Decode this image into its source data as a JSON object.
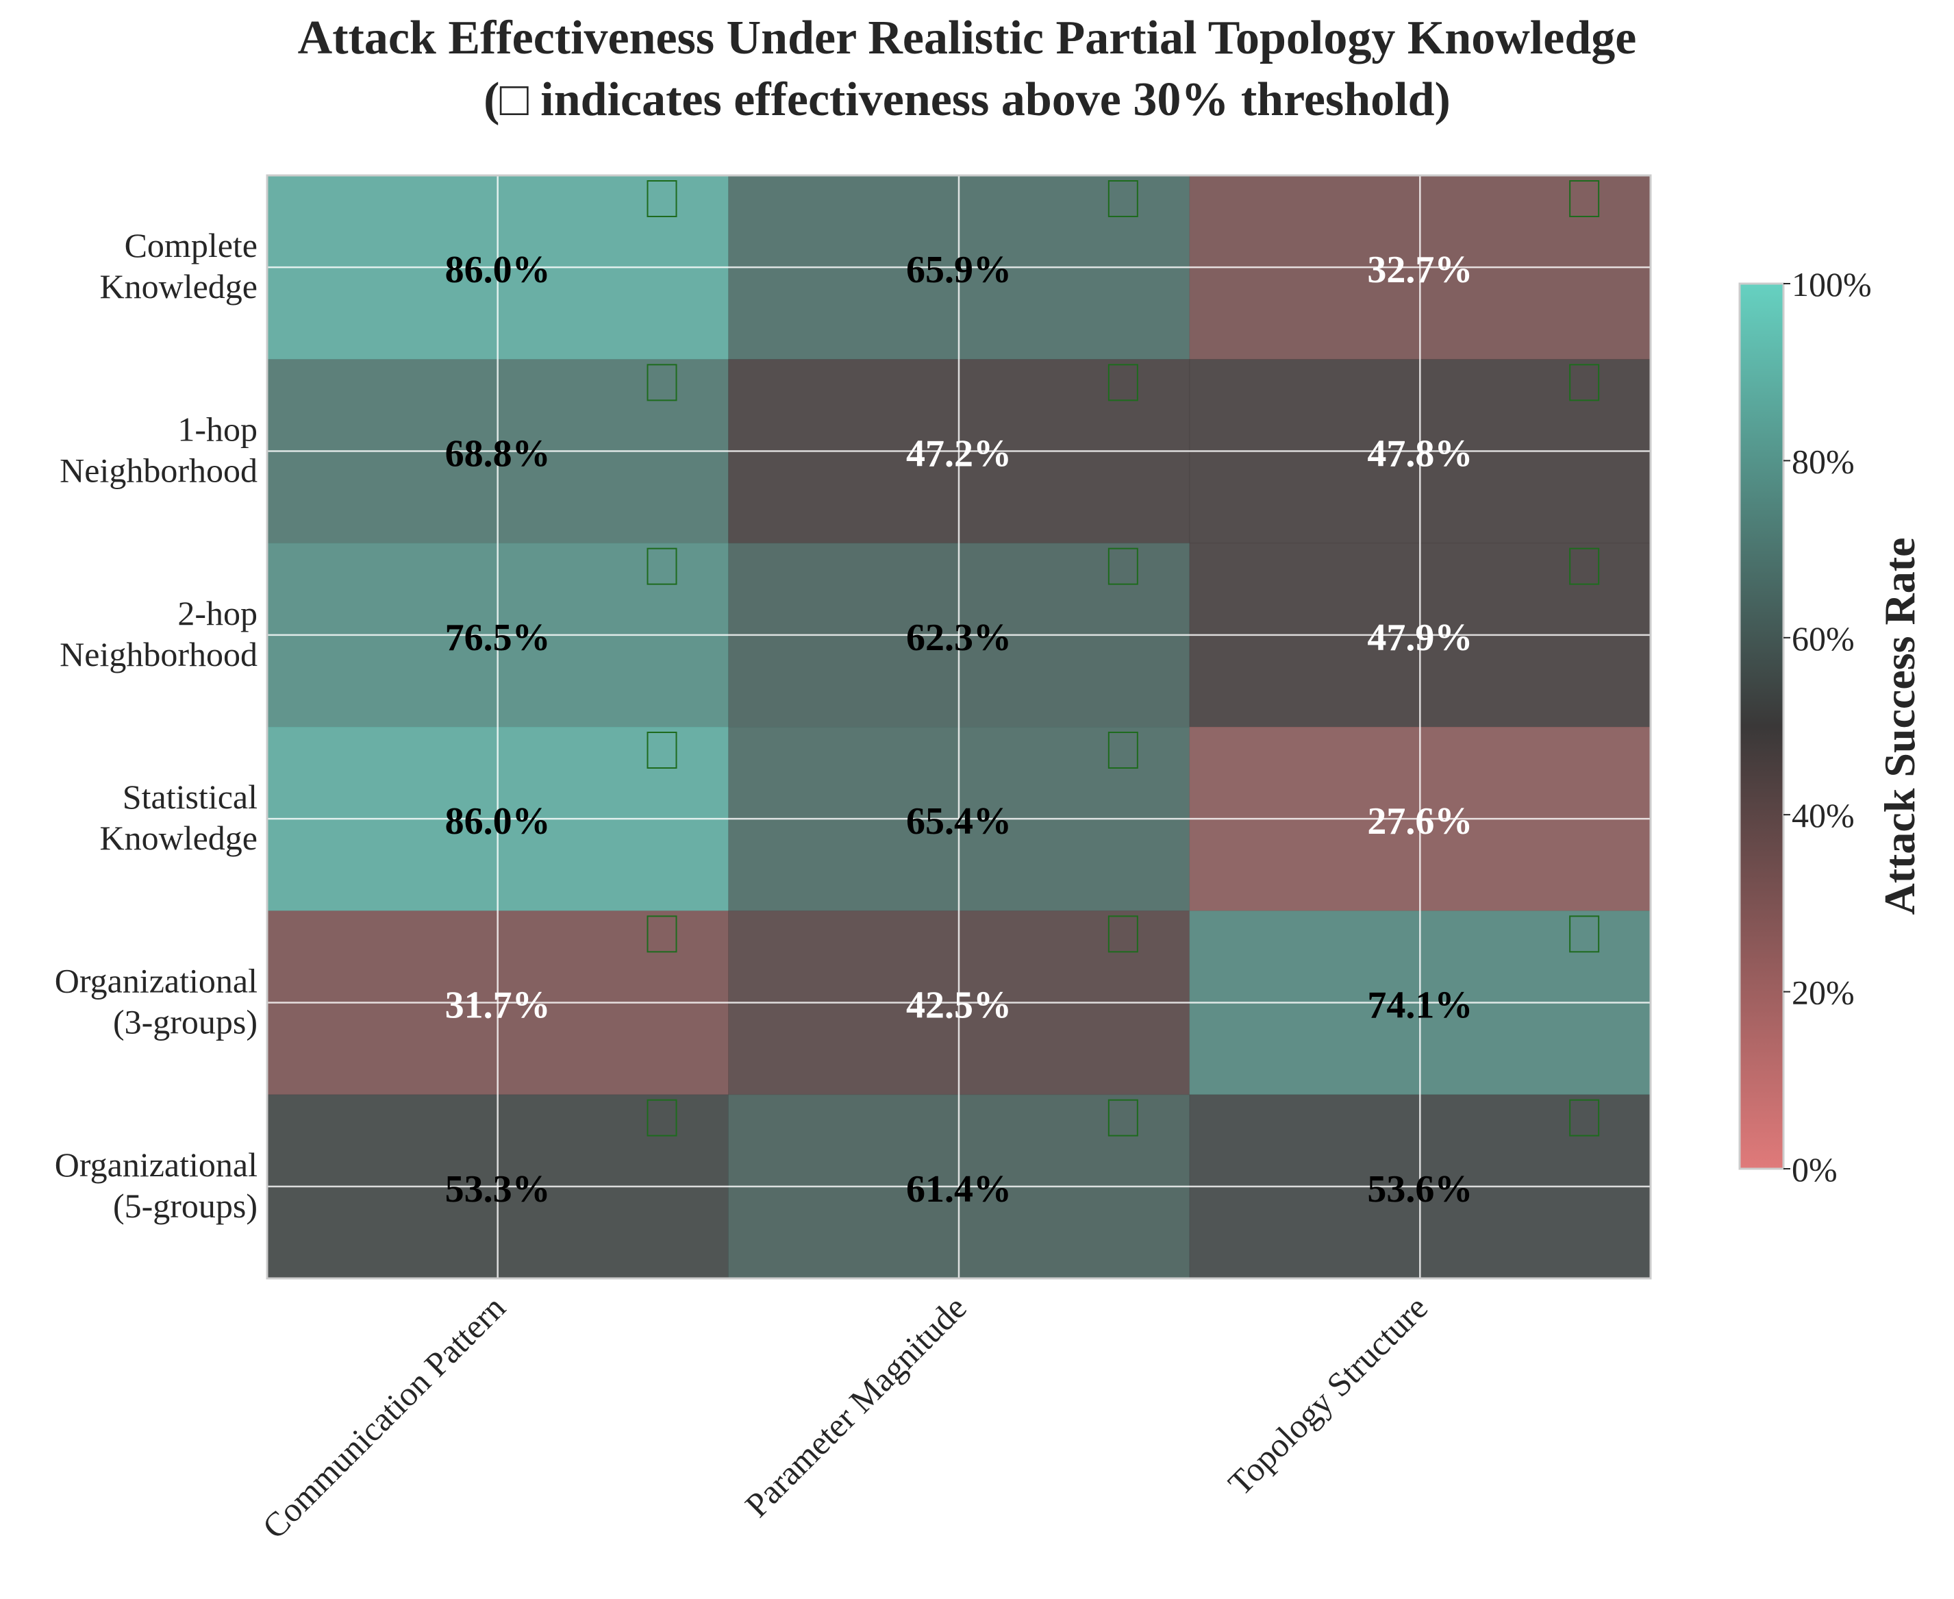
{
  "chart_data": {
    "type": "heatmap",
    "title": "Attack Effectiveness Under Realistic Partial Topology Knowledge",
    "subtitle": "(□ indicates effectiveness above 30% threshold)",
    "rows": [
      "Complete\nKnowledge",
      "1-hop\nNeighborhood",
      "2-hop\nNeighborhood",
      "Statistical\nKnowledge",
      "Organizational\n(3-groups)",
      "Organizational\n(5-groups)"
    ],
    "columns": [
      "Communication Pattern",
      "Parameter Magnitude",
      "Topology Structure"
    ],
    "values": [
      [
        86.0,
        65.9,
        32.7
      ],
      [
        68.8,
        47.2,
        47.8
      ],
      [
        76.5,
        62.3,
        47.9
      ],
      [
        86.0,
        65.4,
        27.6
      ],
      [
        31.7,
        42.5,
        74.1
      ],
      [
        53.3,
        61.4,
        53.6
      ]
    ],
    "cell_labels": [
      [
        "86.0%",
        "65.9%",
        "32.7%"
      ],
      [
        "68.8%",
        "47.2%",
        "47.8%"
      ],
      [
        "76.5%",
        "62.3%",
        "47.9%"
      ],
      [
        "86.0%",
        "65.4%",
        "27.6%"
      ],
      [
        "31.7%",
        "42.5%",
        "74.1%"
      ],
      [
        "53.3%",
        "61.4%",
        "53.6%"
      ]
    ],
    "threshold": 30,
    "marker_symbol": "□",
    "colorbar": {
      "label": "Attack Success Rate",
      "range": [
        0,
        100
      ],
      "ticks": [
        0,
        20,
        40,
        60,
        80,
        100
      ],
      "tick_labels": [
        "0%",
        "20%",
        "40%",
        "60%",
        "80%",
        "100%"
      ],
      "colors": [
        "#e07a7a",
        "#3a3838",
        "#66d1c1"
      ]
    },
    "grid": true
  }
}
